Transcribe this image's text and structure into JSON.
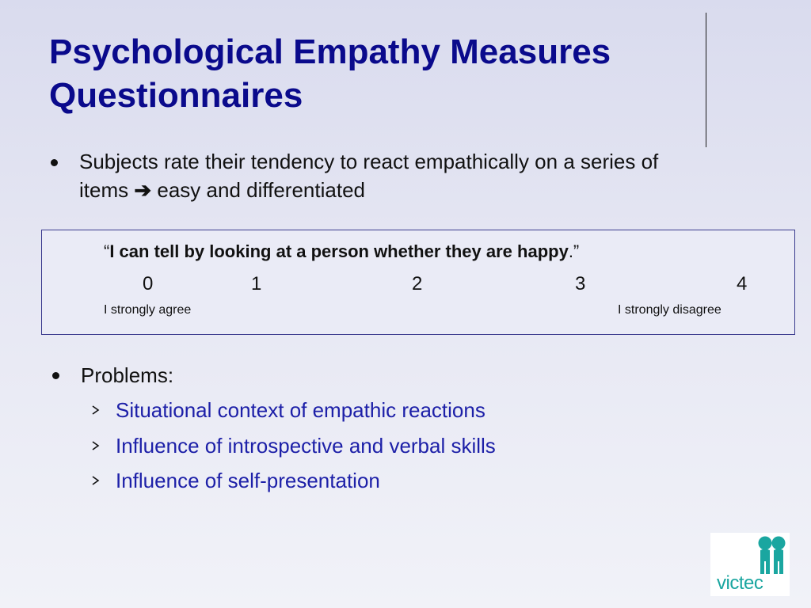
{
  "title": "Psychological Empathy Measures Questionnaires",
  "bullet1": {
    "line1": "Subjects rate their tendency to react empathically on a series of",
    "line2_prefix": "items",
    "arrow": "➔",
    "line2_suffix": "easy and differentiated"
  },
  "scale": {
    "open_quote": "“",
    "statement": "I can tell by looking at a person whether they are happy",
    "close": ".”",
    "numbers": [
      "0",
      "1",
      "2",
      "3",
      "4"
    ],
    "left_anchor": "I strongly agree",
    "right_anchor": "I strongly disagree"
  },
  "bullet2": {
    "label": "Problems:",
    "items": [
      "Situational context of empathic reactions",
      "Influence of introspective and verbal skills",
      "Influence of self-presentation"
    ]
  },
  "logo": {
    "text": "victec",
    "color": "#1aa6a0"
  },
  "colors": {
    "title": "#0a0a8c",
    "subbullets": "#1d20a8"
  }
}
